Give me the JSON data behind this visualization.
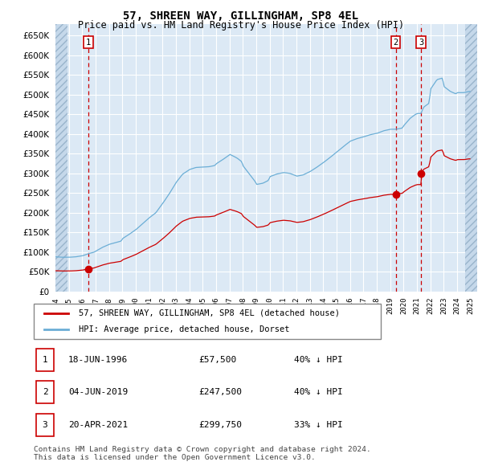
{
  "title": "57, SHREEN WAY, GILLINGHAM, SP8 4EL",
  "subtitle": "Price paid vs. HM Land Registry's House Price Index (HPI)",
  "ylabel_values": [
    0,
    50000,
    100000,
    150000,
    200000,
    250000,
    300000,
    350000,
    400000,
    450000,
    500000,
    550000,
    600000,
    650000
  ],
  "ylim": [
    0,
    680000
  ],
  "xlim_start": 1994.0,
  "xlim_end": 2025.5,
  "plot_bg_color": "#dce9f5",
  "grid_color": "#ffffff",
  "legend_line1": "57, SHREEN WAY, GILLINGHAM, SP8 4EL (detached house)",
  "legend_line2": "HPI: Average price, detached house, Dorset",
  "transactions": [
    {
      "num": 1,
      "date": "18-JUN-1996",
      "price": 57500,
      "pct": "40%",
      "year": 1996.46
    },
    {
      "num": 2,
      "date": "04-JUN-2019",
      "price": 247500,
      "pct": "40%",
      "year": 2019.42
    },
    {
      "num": 3,
      "date": "20-APR-2021",
      "price": 299750,
      "pct": "33%",
      "year": 2021.3
    }
  ],
  "copyright": "Contains HM Land Registry data © Crown copyright and database right 2024.\nThis data is licensed under the Open Government Licence v3.0."
}
